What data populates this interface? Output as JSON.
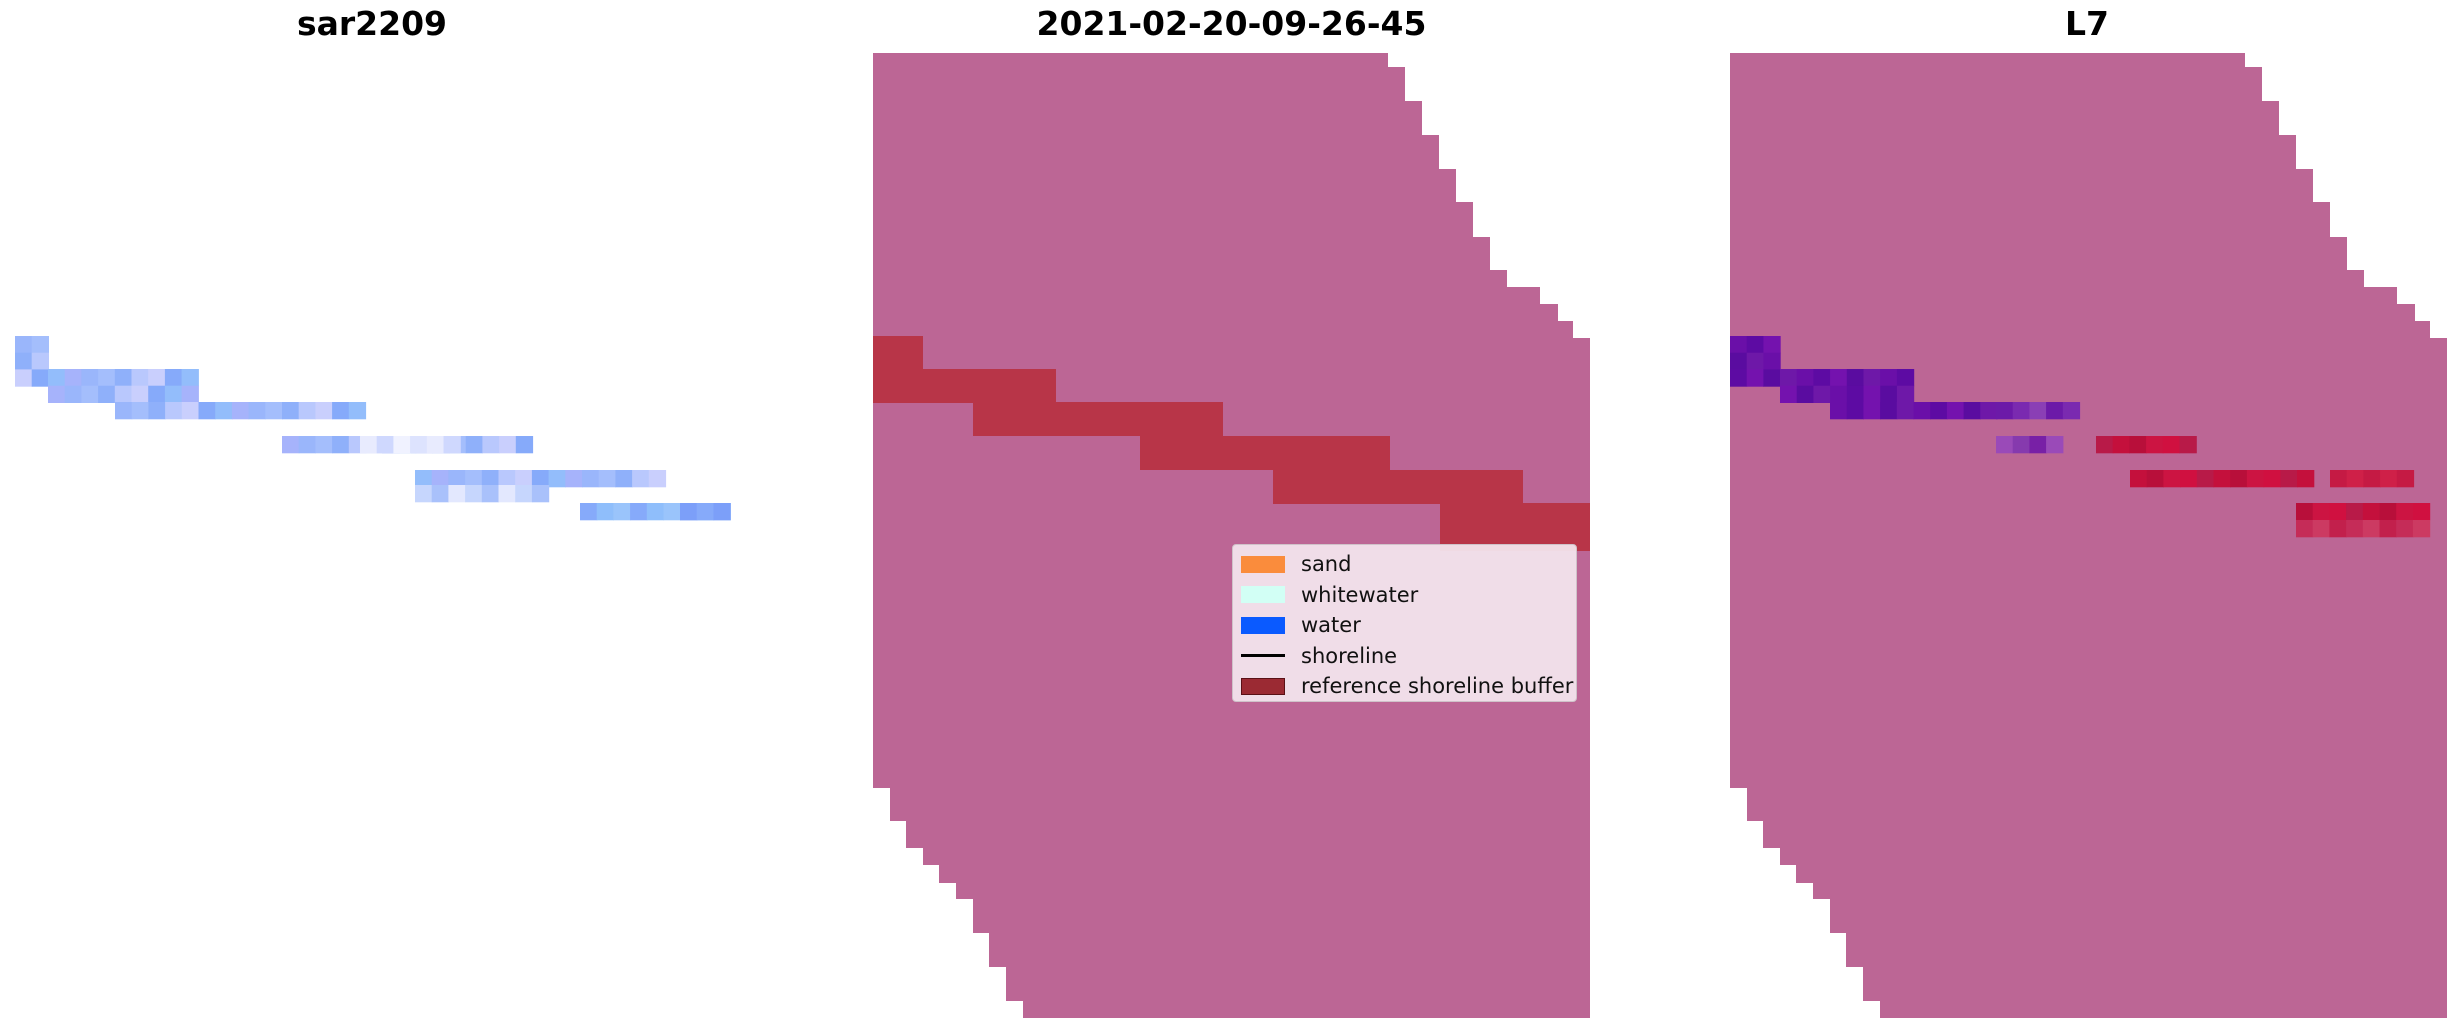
{
  "panels": [
    {
      "title": "sar2209"
    },
    {
      "title": "2021-02-20-09-26-45"
    },
    {
      "title": "L7"
    }
  ],
  "legend": {
    "items": [
      {
        "label": "sand",
        "kind": "patch",
        "color": "#fa8c3c"
      },
      {
        "label": "whitewater",
        "kind": "patch",
        "color": "#d2fff5"
      },
      {
        "label": "water",
        "kind": "patch",
        "color": "#0a5aff"
      },
      {
        "label": "shoreline",
        "kind": "line",
        "color": "#000000"
      },
      {
        "label": "reference shoreline buffer",
        "kind": "patch",
        "color": "#9b2a33"
      }
    ]
  },
  "colors": {
    "mask": "#bc6695",
    "buffer": "#b83548",
    "sar_pixels": "#9ab6fb",
    "l7_water": "#6a0fa8",
    "l7_red": "#c4103c"
  }
}
